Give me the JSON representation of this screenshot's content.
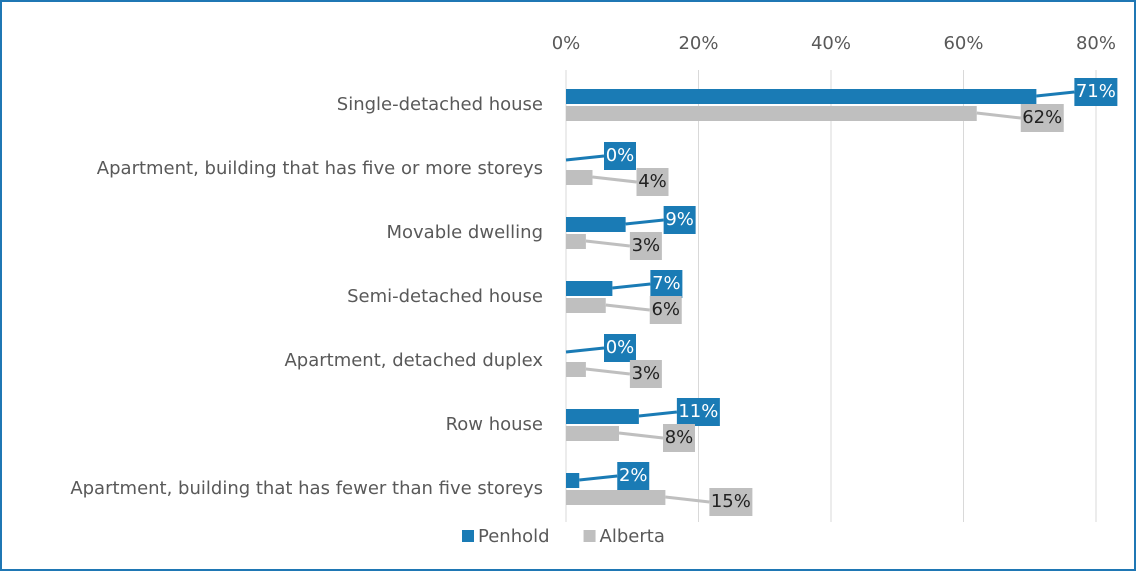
{
  "chart_data": {
    "type": "bar",
    "orientation": "horizontal",
    "categories": [
      "Single-detached house",
      "Apartment, building that has five or more storeys",
      "Movable dwelling",
      "Semi-detached house",
      "Apartment, detached duplex",
      "Row house",
      "Apartment, building that has fewer than five storeys"
    ],
    "series": [
      {
        "name": "Penhold",
        "color": "#1a7bb5",
        "values": [
          71,
          0,
          9,
          7,
          0,
          11,
          2
        ],
        "value_labels": [
          "71%",
          "0%",
          "9%",
          "7%",
          "0%",
          "11%",
          "2%"
        ]
      },
      {
        "name": "Alberta",
        "color": "#bfbfbf",
        "values": [
          62,
          4,
          3,
          6,
          3,
          8,
          15
        ],
        "value_labels": [
          "62%",
          "4%",
          "3%",
          "6%",
          "3%",
          "8%",
          "15%"
        ]
      }
    ],
    "xlim": [
      0,
      80
    ],
    "xticks": [
      {
        "value": 0,
        "label": "0%"
      },
      {
        "value": 20,
        "label": "20%"
      },
      {
        "value": 40,
        "label": "40%"
      },
      {
        "value": 60,
        "label": "60%"
      },
      {
        "value": 80,
        "label": "80%"
      }
    ],
    "grid": true,
    "legend": "bottom"
  }
}
